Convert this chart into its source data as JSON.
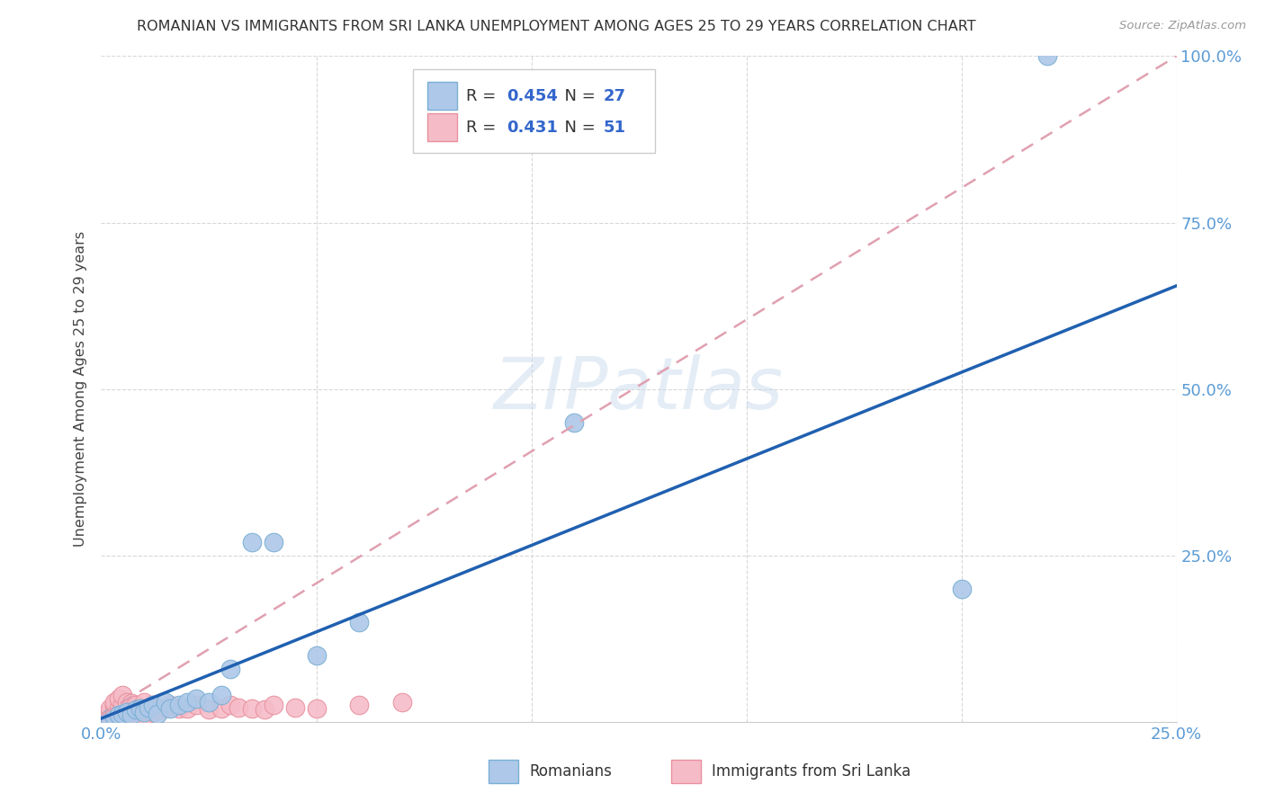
{
  "title": "ROMANIAN VS IMMIGRANTS FROM SRI LANKA UNEMPLOYMENT AMONG AGES 25 TO 29 YEARS CORRELATION CHART",
  "source": "Source: ZipAtlas.com",
  "ylabel": "Unemployment Among Ages 25 to 29 years",
  "watermark": "ZIPatlas",
  "xlim": [
    0.0,
    0.25
  ],
  "ylim": [
    0.0,
    1.0
  ],
  "romanians_R": 0.454,
  "romanians_N": 27,
  "srilanka_R": 0.431,
  "srilanka_N": 51,
  "romanians_color": "#adc8e8",
  "romanians_edge_color": "#7aafd4",
  "srilanka_color": "#f5bcc8",
  "srilanka_edge_color": "#e8909e",
  "regression_blue_color": "#2060b0",
  "regression_pink_color": "#e0a0b0",
  "background_color": "#ffffff",
  "grid_color": "#d8d8d8",
  "ro_x": [
    0.002,
    0.003,
    0.004,
    0.005,
    0.006,
    0.007,
    0.008,
    0.009,
    0.01,
    0.011,
    0.012,
    0.013,
    0.015,
    0.016,
    0.018,
    0.02,
    0.022,
    0.025,
    0.028,
    0.03,
    0.035,
    0.04,
    0.05,
    0.06,
    0.11,
    0.2,
    0.22
  ],
  "ro_y": [
    0.005,
    0.008,
    0.01,
    0.012,
    0.015,
    0.01,
    0.018,
    0.02,
    0.015,
    0.022,
    0.025,
    0.012,
    0.03,
    0.02,
    0.025,
    0.03,
    0.035,
    0.03,
    0.04,
    0.08,
    0.27,
    0.27,
    0.1,
    0.15,
    0.45,
    0.2,
    1.0
  ],
  "sl_x": [
    0.001,
    0.001,
    0.002,
    0.002,
    0.002,
    0.003,
    0.003,
    0.003,
    0.003,
    0.004,
    0.004,
    0.004,
    0.005,
    0.005,
    0.005,
    0.005,
    0.006,
    0.006,
    0.006,
    0.007,
    0.007,
    0.007,
    0.008,
    0.008,
    0.008,
    0.009,
    0.009,
    0.01,
    0.01,
    0.01,
    0.011,
    0.012,
    0.012,
    0.013,
    0.014,
    0.015,
    0.016,
    0.018,
    0.02,
    0.022,
    0.025,
    0.028,
    0.03,
    0.032,
    0.035,
    0.038,
    0.04,
    0.045,
    0.05,
    0.06,
    0.07
  ],
  "sl_y": [
    0.005,
    0.01,
    0.008,
    0.015,
    0.02,
    0.01,
    0.015,
    0.025,
    0.03,
    0.012,
    0.02,
    0.035,
    0.008,
    0.018,
    0.025,
    0.04,
    0.015,
    0.022,
    0.03,
    0.012,
    0.02,
    0.028,
    0.01,
    0.018,
    0.025,
    0.015,
    0.022,
    0.008,
    0.018,
    0.03,
    0.02,
    0.015,
    0.025,
    0.02,
    0.018,
    0.022,
    0.025,
    0.02,
    0.02,
    0.025,
    0.018,
    0.02,
    0.025,
    0.022,
    0.02,
    0.018,
    0.025,
    0.022,
    0.02,
    0.025,
    0.03
  ],
  "ro_line_x": [
    0.0,
    0.25
  ],
  "ro_line_y": [
    0.005,
    0.655
  ],
  "sl_line_x": [
    0.0,
    0.25
  ],
  "sl_line_y": [
    0.01,
    1.0
  ]
}
